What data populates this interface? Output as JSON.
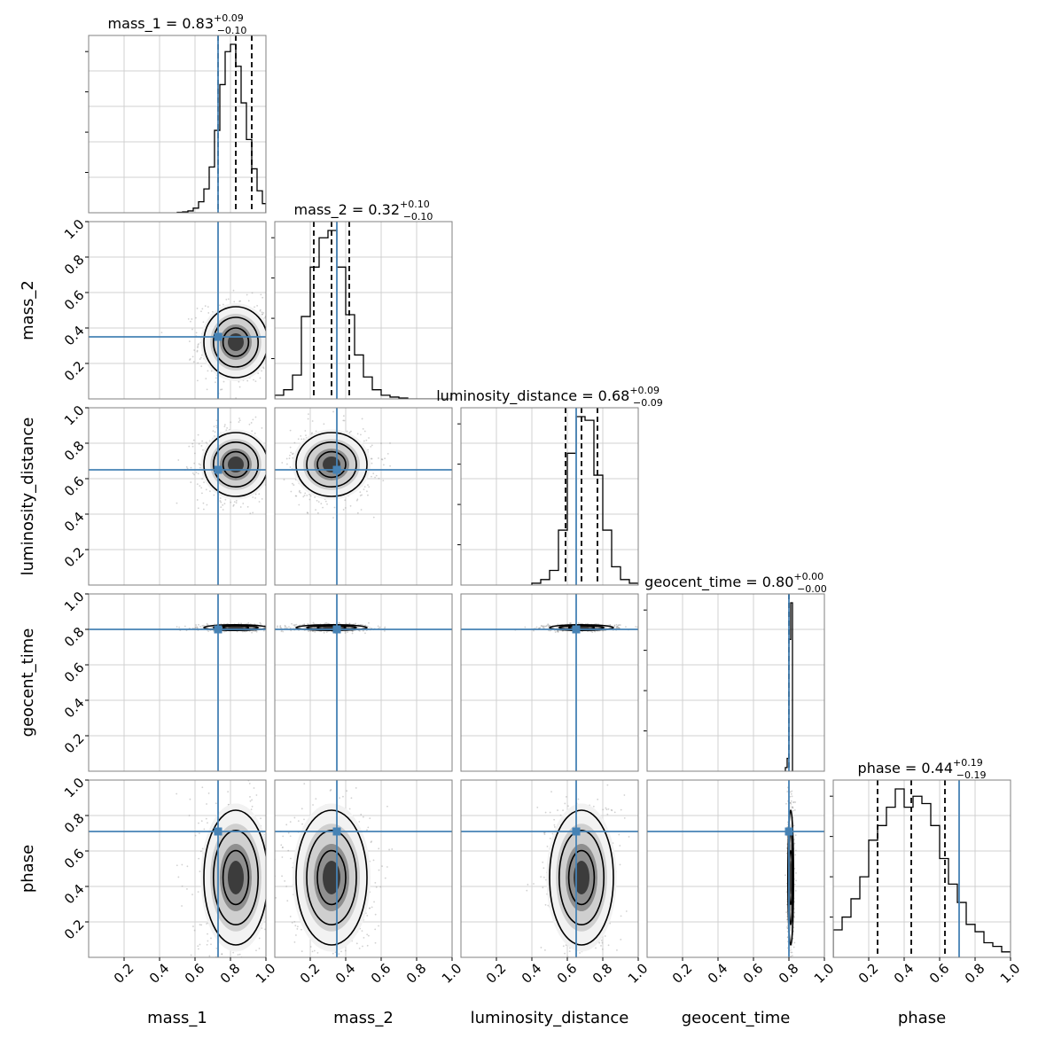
{
  "chart_data": {
    "type": "corner",
    "parameters": [
      "mass_1",
      "mass_2",
      "luminosity_distance",
      "geocent_time",
      "phase"
    ],
    "range": [
      0,
      1
    ],
    "tick_labels": [
      "0.2",
      "0.4",
      "0.6",
      "0.8",
      "1.0"
    ],
    "tick_values": [
      0.2,
      0.4,
      0.6,
      0.8,
      1.0
    ],
    "truth_color": "#4682b4",
    "truths": [
      0.73,
      0.35,
      0.65,
      0.8,
      0.71
    ],
    "titles": [
      {
        "label": "mass_1",
        "median": "0.83",
        "plus": "+0.09",
        "minus": "−0.10"
      },
      {
        "label": "mass_2",
        "median": "0.32",
        "plus": "+0.10",
        "minus": "−0.10"
      },
      {
        "label": "luminosity_distance",
        "median": "0.68",
        "plus": "+0.09",
        "minus": "−0.09"
      },
      {
        "label": "geocent_time",
        "median": "0.80",
        "plus": "+0.00",
        "minus": "−0.00"
      },
      {
        "label": "phase",
        "median": "0.44",
        "plus": "+0.19",
        "minus": "−0.19"
      }
    ],
    "quantiles": [
      [
        0.73,
        0.83,
        0.92
      ],
      [
        0.22,
        0.32,
        0.42
      ],
      [
        0.59,
        0.68,
        0.77
      ],
      [
        0.8,
        0.8,
        0.8
      ],
      [
        0.25,
        0.44,
        0.63
      ]
    ],
    "histograms": [
      {
        "edges": [
          0.5,
          0.53,
          0.56,
          0.59,
          0.62,
          0.65,
          0.68,
          0.71,
          0.74,
          0.77,
          0.8,
          0.83,
          0.86,
          0.89,
          0.92,
          0.95,
          0.98,
          1.0
        ],
        "counts": [
          0.2,
          0.5,
          1,
          2.5,
          6,
          13,
          25,
          45,
          70,
          88,
          92,
          80,
          60,
          40,
          24,
          12,
          5
        ]
      },
      {
        "edges": [
          0.0,
          0.05,
          0.1,
          0.15,
          0.2,
          0.25,
          0.3,
          0.35,
          0.4,
          0.45,
          0.5,
          0.55,
          0.6,
          0.65,
          0.7,
          0.75,
          0.8,
          0.85,
          0.9,
          0.95,
          1.0
        ],
        "counts": [
          2,
          5,
          13,
          45,
          72,
          88,
          92,
          72,
          46,
          24,
          12,
          5,
          2,
          1,
          0.5,
          0,
          0,
          0,
          0,
          0
        ]
      },
      {
        "edges": [
          0.4,
          0.45,
          0.5,
          0.55,
          0.6,
          0.65,
          0.7,
          0.75,
          0.8,
          0.85,
          0.9,
          0.95,
          1.0
        ],
        "counts": [
          1,
          3,
          8,
          30,
          72,
          92,
          90,
          60,
          30,
          10,
          3,
          1
        ]
      },
      {
        "edges": [
          0.78,
          0.79,
          0.8,
          0.81,
          0.82
        ],
        "counts": [
          2,
          7,
          72,
          92
        ]
      },
      {
        "edges": [
          0.0,
          0.05,
          0.1,
          0.15,
          0.2,
          0.25,
          0.3,
          0.35,
          0.4,
          0.45,
          0.5,
          0.55,
          0.6,
          0.65,
          0.7,
          0.75,
          0.8,
          0.85,
          0.9,
          0.95,
          1.0
        ],
        "counts": [
          15,
          22,
          32,
          44,
          64,
          72,
          82,
          92,
          82,
          88,
          84,
          72,
          54,
          40,
          30,
          18,
          14,
          8,
          6,
          3
        ]
      }
    ],
    "posterior_centers": [
      0.83,
      0.32,
      0.68,
      0.81,
      0.45
    ],
    "posterior_sigmas": [
      0.09,
      0.1,
      0.09,
      0.008,
      0.19
    ]
  }
}
